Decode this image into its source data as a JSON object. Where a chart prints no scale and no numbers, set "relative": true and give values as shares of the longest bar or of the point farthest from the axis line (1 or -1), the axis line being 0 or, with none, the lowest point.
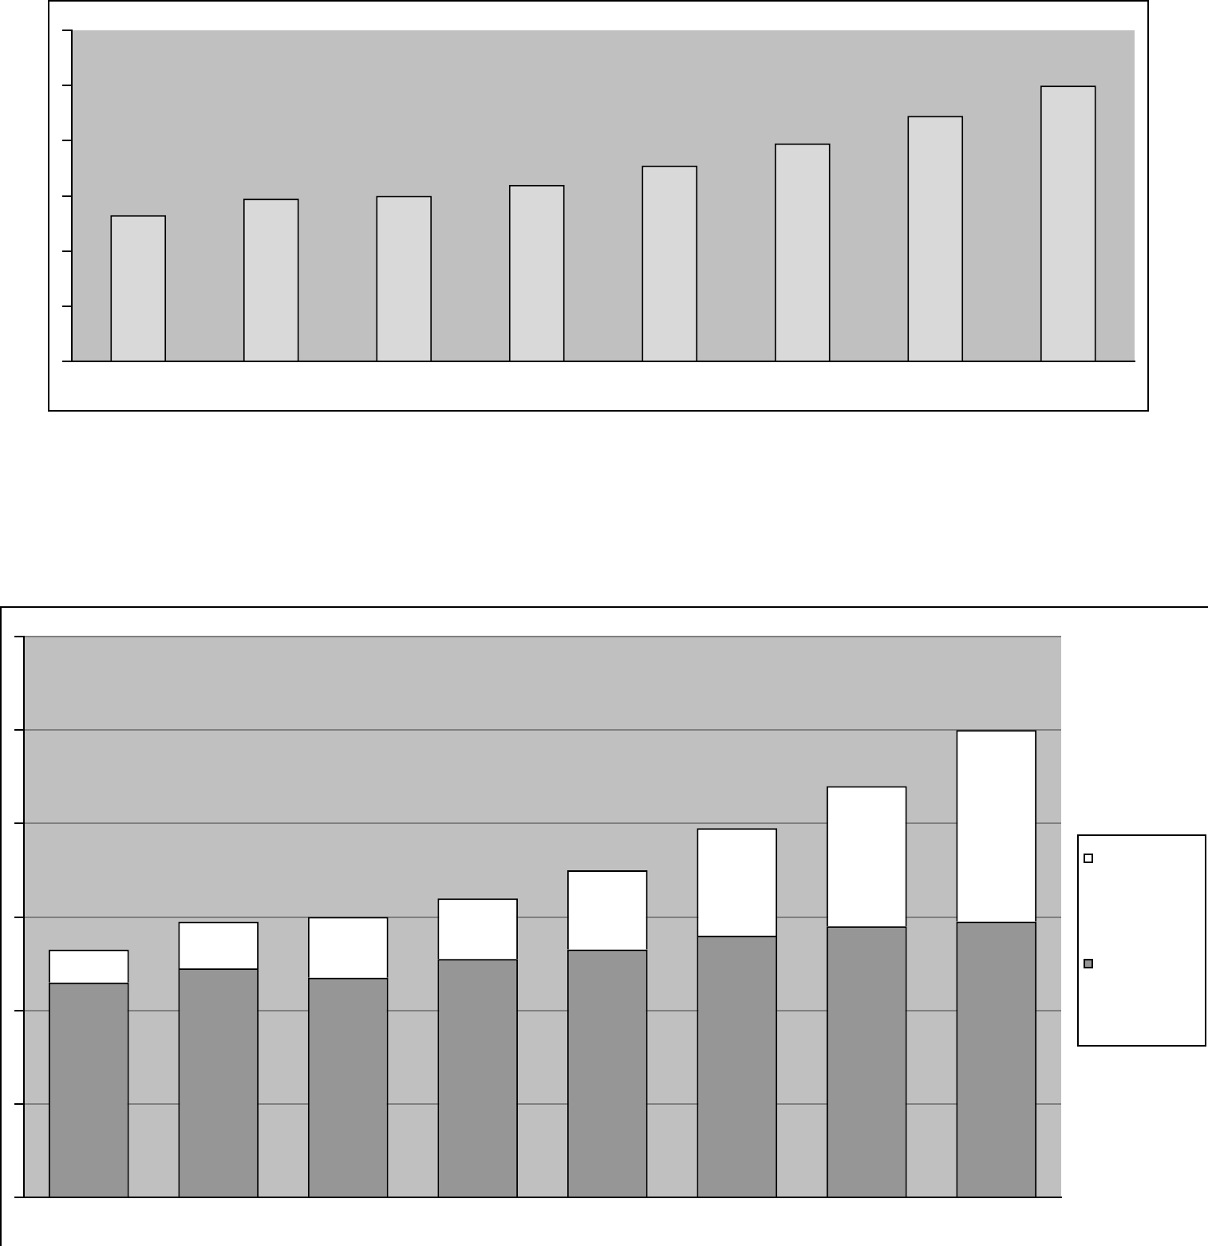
{
  "chart_data": [
    {
      "type": "bar",
      "relative": true,
      "categories": [
        null,
        null,
        null,
        null,
        null,
        null,
        null,
        null
      ],
      "values": [
        0.53,
        0.59,
        0.6,
        0.64,
        0.71,
        0.79,
        0.89,
        1
      ],
      "color": "#d9d9d9",
      "grid": false,
      "legend": false
    },
    {
      "type": "bar",
      "relative": true,
      "stacked": true,
      "categories": [
        null,
        null,
        null,
        null,
        null,
        null,
        null,
        null
      ],
      "series": [
        {
          "color": "#969696",
          "values": [
            0.46,
            0.49,
            0.47,
            0.51,
            0.53,
            0.56,
            0.58,
            0.59
          ]
        },
        {
          "color": "#ffffff",
          "values": [
            0.07,
            0.1,
            0.13,
            0.13,
            0.17,
            0.23,
            0.3,
            0.41
          ]
        }
      ],
      "grid": "y"
    }
  ]
}
